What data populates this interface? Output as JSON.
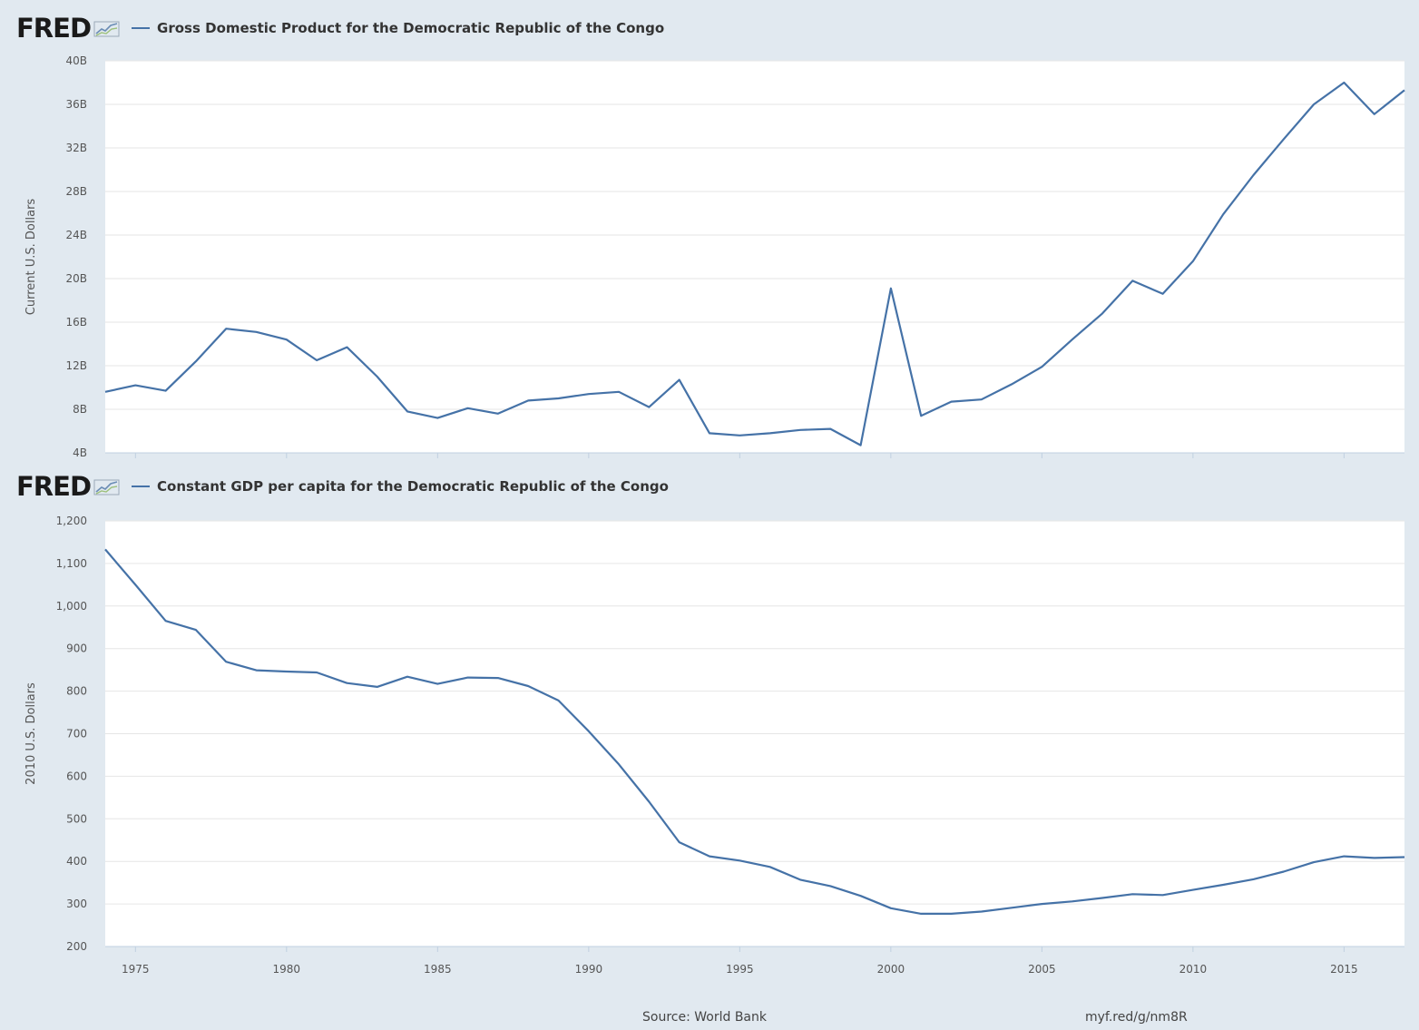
{
  "charts": [
    {
      "brand": "FRED",
      "legend": "Gross Domestic Product for the Democratic Republic of the Congo"
    },
    {
      "brand": "FRED",
      "legend": "Constant GDP per capita for the Democratic Republic of the Congo"
    }
  ],
  "footer": {
    "source": "Source: World Bank",
    "link": "myf.red/g/nm8R"
  },
  "chart_data": [
    {
      "type": "line",
      "title": "Gross Domestic Product for the Democratic Republic of the Congo",
      "xlabel": "",
      "ylabel": "Current U.S. Dollars",
      "xlim": [
        1974,
        2017
      ],
      "ylim": [
        4,
        40
      ],
      "y_ticks": [
        4,
        8,
        12,
        16,
        20,
        24,
        28,
        32,
        36,
        40
      ],
      "y_tick_labels": [
        "4B",
        "8B",
        "12B",
        "16B",
        "20B",
        "24B",
        "28B",
        "32B",
        "36B",
        "40B"
      ],
      "x_ticks": [
        1975,
        1980,
        1985,
        1990,
        1995,
        2000,
        2005,
        2010,
        2015
      ],
      "show_x_tick_labels": false,
      "grid": true,
      "series": [
        {
          "color": "#4572a7",
          "x": [
            1974,
            1975,
            1976,
            1977,
            1978,
            1979,
            1980,
            1981,
            1982,
            1983,
            1984,
            1985,
            1986,
            1987,
            1988,
            1989,
            1990,
            1991,
            1992,
            1993,
            1994,
            1995,
            1996,
            1997,
            1998,
            1999,
            2000,
            2001,
            2002,
            2003,
            2004,
            2005,
            2006,
            2007,
            2008,
            2009,
            2010,
            2011,
            2012,
            2013,
            2014,
            2015,
            2016,
            2017
          ],
          "y": [
            9.6,
            10.2,
            9.7,
            12.4,
            15.4,
            15.1,
            14.4,
            12.5,
            13.7,
            11.0,
            7.8,
            7.2,
            8.1,
            7.6,
            8.8,
            9.0,
            9.4,
            9.6,
            8.2,
            10.7,
            5.8,
            5.6,
            5.8,
            6.1,
            6.2,
            4.7,
            19.1,
            7.4,
            8.7,
            8.9,
            10.3,
            11.9,
            14.4,
            16.8,
            19.8,
            18.6,
            21.6,
            25.9,
            29.5,
            32.8,
            36.0,
            38.0,
            35.1,
            37.3
          ]
        }
      ]
    },
    {
      "type": "line",
      "title": "Constant GDP per capita for the Democratic Republic of the Congo",
      "xlabel": "",
      "ylabel": "2010 U.S. Dollars",
      "xlim": [
        1974,
        2017
      ],
      "ylim": [
        200,
        1200
      ],
      "y_ticks": [
        200,
        300,
        400,
        500,
        600,
        700,
        800,
        900,
        1000,
        1100,
        1200
      ],
      "y_tick_labels": [
        "200",
        "300",
        "400",
        "500",
        "600",
        "700",
        "800",
        "900",
        "1,000",
        "1,100",
        "1,200"
      ],
      "x_ticks": [
        1975,
        1980,
        1985,
        1990,
        1995,
        2000,
        2005,
        2010,
        2015
      ],
      "x_tick_labels": [
        "1975",
        "1980",
        "1985",
        "1990",
        "1995",
        "2000",
        "2005",
        "2010",
        "2015"
      ],
      "show_x_tick_labels": true,
      "grid": true,
      "series": [
        {
          "color": "#4572a7",
          "x": [
            1974,
            1975,
            1976,
            1977,
            1978,
            1979,
            1980,
            1981,
            1982,
            1983,
            1984,
            1985,
            1986,
            1987,
            1988,
            1989,
            1990,
            1991,
            1992,
            1993,
            1994,
            1995,
            1996,
            1997,
            1998,
            1999,
            2000,
            2001,
            2002,
            2003,
            2004,
            2005,
            2006,
            2007,
            2008,
            2009,
            2010,
            2011,
            2012,
            2013,
            2014,
            2015,
            2016,
            2017
          ],
          "y": [
            1133,
            1050,
            965,
            944,
            869,
            849,
            846,
            844,
            819,
            810,
            834,
            817,
            832,
            831,
            812,
            778,
            706,
            628,
            540,
            445,
            412,
            402,
            387,
            357,
            342,
            319,
            290,
            277,
            277,
            282,
            291,
            300,
            306,
            314,
            323,
            321,
            333,
            345,
            358,
            376,
            398,
            412,
            408,
            410
          ]
        }
      ]
    }
  ]
}
